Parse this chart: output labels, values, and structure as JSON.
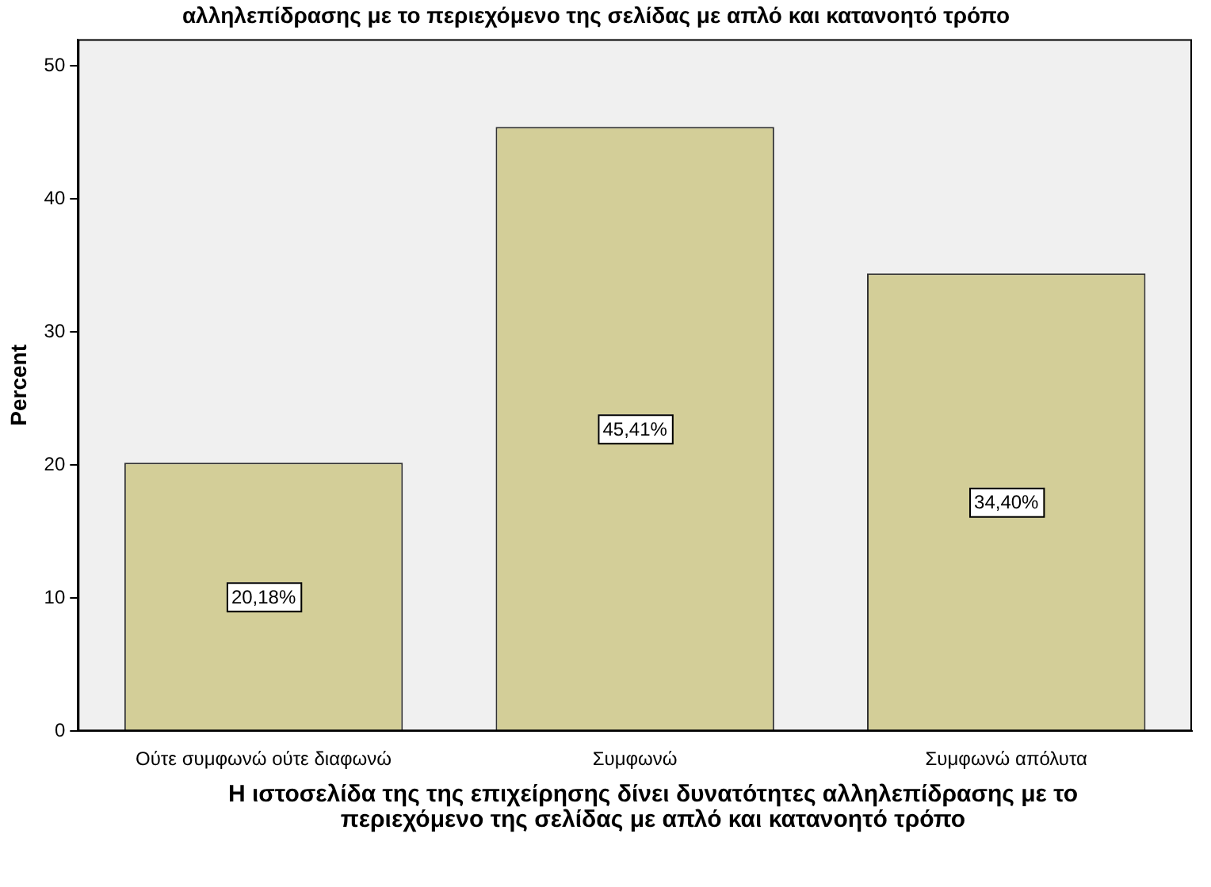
{
  "chart_data": {
    "type": "bar",
    "title": "αλληλεπίδρασης με το περιεχόμενο της σελίδας με απλό και κατανοητό τρόπο",
    "xlabel": "Η ιστοσελίδα της της επιχείρησης δίνει δυνατότητες αλληλεπίδρασης με το περιεχόμενο της σελίδας με απλό και κατανοητό τρόπο",
    "ylabel": "Percent",
    "categories": [
      "Ούτε συμφωνώ ούτε διαφωνώ",
      "Συμφωνώ",
      "Συμφωνώ απόλυτα"
    ],
    "values": [
      20.18,
      45.41,
      34.4
    ],
    "value_labels": [
      "20,18%",
      "45,41%",
      "34,40%"
    ],
    "color": "#d3ce98",
    "ylim": [
      0,
      52
    ],
    "yticks": [
      0,
      10,
      20,
      30,
      40,
      50
    ],
    "legend": false
  }
}
